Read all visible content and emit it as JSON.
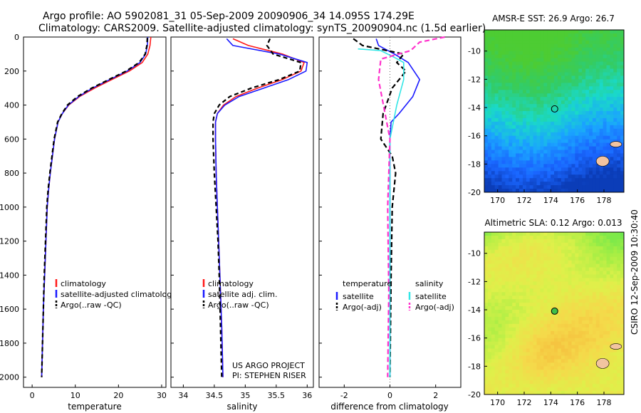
{
  "header": {
    "line1": "Argo profile: AO 5902081_31 05-Sep-2009 20090906_34 14.095S 174.29E",
    "line2": "Climatology: CARS2009. Satellite-adjusted climatology: synTS_20090904.nc (1.5d earlier)"
  },
  "side_label": "CSIRO 12-Sep-2009 10:30:40",
  "project": {
    "line1": "US ARGO PROJECT",
    "line2": "PI: STEPHEN RISER"
  },
  "colors": {
    "climatology": "#ff1a1a",
    "satellite": "#1a1aff",
    "argo": "#000000",
    "argo_adj": "#ff33cc",
    "sat_salinity": "#33e6e6"
  },
  "chart_data": [
    {
      "type": "line",
      "xlabel": "temperature",
      "xlim": [
        -2,
        31
      ],
      "xticks": [
        0,
        10,
        20,
        30
      ],
      "ylim": [
        2060,
        0
      ],
      "yticks": [
        0,
        200,
        400,
        600,
        800,
        1000,
        1200,
        1400,
        1600,
        1800,
        2000
      ],
      "legend_position": "lower-right",
      "legend": [
        "climatology",
        "satellite-adjusted climatology",
        "Argo(..raw -QC)"
      ],
      "series": [
        {
          "name": "climatology",
          "color": "#ff1a1a",
          "dash": "",
          "x": [
            27.5,
            27.3,
            26.8,
            25.5,
            22.5,
            18.5,
            14.5,
            11.0,
            8.5,
            7.0,
            6.0,
            5.2,
            4.7,
            4.2,
            3.8,
            3.5,
            3.2,
            2.9,
            2.6,
            2.4,
            2.3,
            2.2
          ],
          "y": [
            0,
            50,
            100,
            150,
            200,
            250,
            300,
            350,
            400,
            450,
            500,
            600,
            700,
            800,
            900,
            1000,
            1200,
            1400,
            1600,
            1800,
            1900,
            2000
          ]
        },
        {
          "name": "satellite-adjusted climatology",
          "color": "#1a1aff",
          "dash": "",
          "x": [
            26.8,
            26.7,
            26.3,
            25.0,
            22.0,
            18.0,
            14.0,
            10.8,
            8.4,
            7.0,
            6.0,
            5.2,
            4.7,
            4.2,
            3.8,
            3.5,
            3.2,
            2.9,
            2.6,
            2.4,
            2.3,
            2.2
          ],
          "y": [
            0,
            50,
            100,
            150,
            200,
            250,
            300,
            350,
            400,
            450,
            500,
            600,
            700,
            800,
            900,
            1000,
            1200,
            1400,
            1600,
            1800,
            1900,
            2000
          ]
        },
        {
          "name": "Argo(..raw -QC)",
          "color": "#000000",
          "dash": "6,4",
          "x": [
            26.7,
            26.6,
            26.2,
            24.8,
            21.8,
            17.8,
            13.8,
            10.5,
            8.2,
            6.9,
            5.9,
            5.1,
            4.6,
            4.1,
            3.7,
            3.4,
            3.1,
            2.8,
            2.6,
            2.4,
            2.3,
            2.2
          ],
          "y": [
            5,
            50,
            100,
            150,
            200,
            250,
            300,
            350,
            400,
            450,
            500,
            600,
            700,
            800,
            900,
            1000,
            1200,
            1400,
            1600,
            1800,
            1900,
            2000
          ]
        }
      ]
    },
    {
      "type": "line",
      "xlabel": "salinity",
      "xlim": [
        33.8,
        36.1
      ],
      "xticks": [
        34,
        34.5,
        35,
        35.5,
        36
      ],
      "ylim": [
        2060,
        0
      ],
      "legend_position": "lower-right",
      "legend": [
        "climatology",
        "satellite adj. clim.",
        "Argo(..raw -QC)"
      ],
      "series": [
        {
          "name": "climatology",
          "color": "#ff1a1a",
          "dash": "",
          "x": [
            34.8,
            35.05,
            35.6,
            35.95,
            35.9,
            35.6,
            35.2,
            34.85,
            34.65,
            34.55,
            34.52,
            34.52,
            34.53,
            34.55,
            34.57,
            34.59,
            34.62,
            34.64
          ],
          "y": [
            10,
            50,
            100,
            150,
            200,
            250,
            300,
            350,
            400,
            450,
            500,
            600,
            800,
            1000,
            1200,
            1400,
            1700,
            2000
          ]
        },
        {
          "name": "satellite adj. clim.",
          "color": "#1a1aff",
          "dash": "",
          "x": [
            34.7,
            34.8,
            35.55,
            36.0,
            35.98,
            35.7,
            35.3,
            34.9,
            34.67,
            34.55,
            34.52,
            34.52,
            34.53,
            34.55,
            34.57,
            34.59,
            34.62,
            34.64
          ],
          "y": [
            10,
            50,
            100,
            150,
            200,
            250,
            300,
            350,
            400,
            450,
            500,
            600,
            800,
            1000,
            1200,
            1400,
            1700,
            2000
          ]
        },
        {
          "name": "Argo(..raw -QC)",
          "color": "#000000",
          "dash": "6,4",
          "x": [
            35.4,
            35.35,
            35.45,
            35.9,
            35.88,
            35.55,
            35.1,
            34.75,
            34.58,
            34.5,
            34.48,
            34.48,
            34.5,
            34.53,
            34.56,
            34.58,
            34.6,
            34.62
          ],
          "y": [
            10,
            50,
            100,
            150,
            200,
            250,
            300,
            350,
            400,
            450,
            500,
            600,
            800,
            1000,
            1200,
            1400,
            1700,
            2000
          ]
        }
      ]
    },
    {
      "type": "line",
      "xlabel": "difference from climatology",
      "xlim": [
        -3.1,
        3.1
      ],
      "xticks": [
        -2,
        0,
        2
      ],
      "ylim": [
        2060,
        0
      ],
      "legend_position": "lower-right",
      "legend_groups": {
        "left_title": "temperature",
        "right_title": "salinity"
      },
      "legend_left": [
        "satellite",
        "Argo(-adj)"
      ],
      "legend_right": [
        "satellite",
        "Argo(-adj)"
      ],
      "series": [
        {
          "name": "satellite",
          "group": "temperature",
          "color": "#1a1aff",
          "dash": "",
          "x": [
            -0.6,
            -0.5,
            0.2,
            0.8,
            1.3,
            1.0,
            0.4,
            0.05,
            0.0,
            0.0,
            0.0,
            0.0,
            0.0
          ],
          "y": [
            10,
            50,
            100,
            150,
            250,
            350,
            450,
            500,
            600,
            800,
            1200,
            1600,
            2000
          ]
        },
        {
          "name": "Argo(-adj)",
          "group": "temperature",
          "color": "#000000",
          "dash": "7,4",
          "x": [
            -1.6,
            -1.2,
            0.6,
            0.3,
            0.7,
            0.1,
            -0.3,
            -0.4,
            0.1,
            0.25,
            0.1,
            0.05,
            0.0
          ],
          "y": [
            10,
            50,
            100,
            150,
            200,
            300,
            450,
            600,
            700,
            800,
            1000,
            1400,
            2000
          ]
        },
        {
          "name": "satellite",
          "group": "salinity",
          "color": "#33e6e6",
          "dash": "",
          "x": [
            -1.4,
            -0.4,
            0.2,
            0.6,
            0.6,
            0.3,
            0.0,
            0.0,
            0.0,
            0.0
          ],
          "y": [
            70,
            80,
            120,
            150,
            250,
            400,
            600,
            800,
            1400,
            2000
          ]
        },
        {
          "name": "Argo(-adj)",
          "group": "salinity",
          "color": "#ff33cc",
          "dash": "7,4",
          "x": [
            2.4,
            1.3,
            0.9,
            -0.4,
            -0.5,
            0.0,
            -0.1,
            -0.05,
            -0.1
          ],
          "y": [
            0,
            30,
            80,
            130,
            250,
            600,
            1000,
            1500,
            2000
          ]
        }
      ]
    },
    {
      "type": "heatmap",
      "title": "AMSR-E SST: 26.9 Argo: 26.7",
      "xticks": [
        170,
        172,
        174,
        176,
        178
      ],
      "yticks": [
        -10,
        -12,
        -14,
        -16,
        -18,
        -20
      ],
      "xlim": [
        169,
        179.5
      ],
      "ylim": [
        -20,
        -8.5
      ],
      "colormap": [
        "#0b3db8",
        "#1a66ff",
        "#1aa3ff",
        "#1ad9c8",
        "#33cc66",
        "#4dcc33"
      ],
      "marker": {
        "lon": 174.29,
        "lat": -14.095
      }
    },
    {
      "type": "heatmap",
      "title": "Altimetric SLA: 0.12 Argo: 0.013",
      "xticks": [
        170,
        172,
        174,
        176,
        178
      ],
      "yticks": [
        -10,
        -12,
        -14,
        -16,
        -18,
        -20
      ],
      "xlim": [
        169,
        179.5
      ],
      "ylim": [
        -20,
        -8.5
      ],
      "colormap": [
        "#66e64d",
        "#a6ee44",
        "#dff04a",
        "#f5d94a",
        "#f5b83a"
      ],
      "marker": {
        "lon": 174.29,
        "lat": -14.095
      }
    }
  ]
}
